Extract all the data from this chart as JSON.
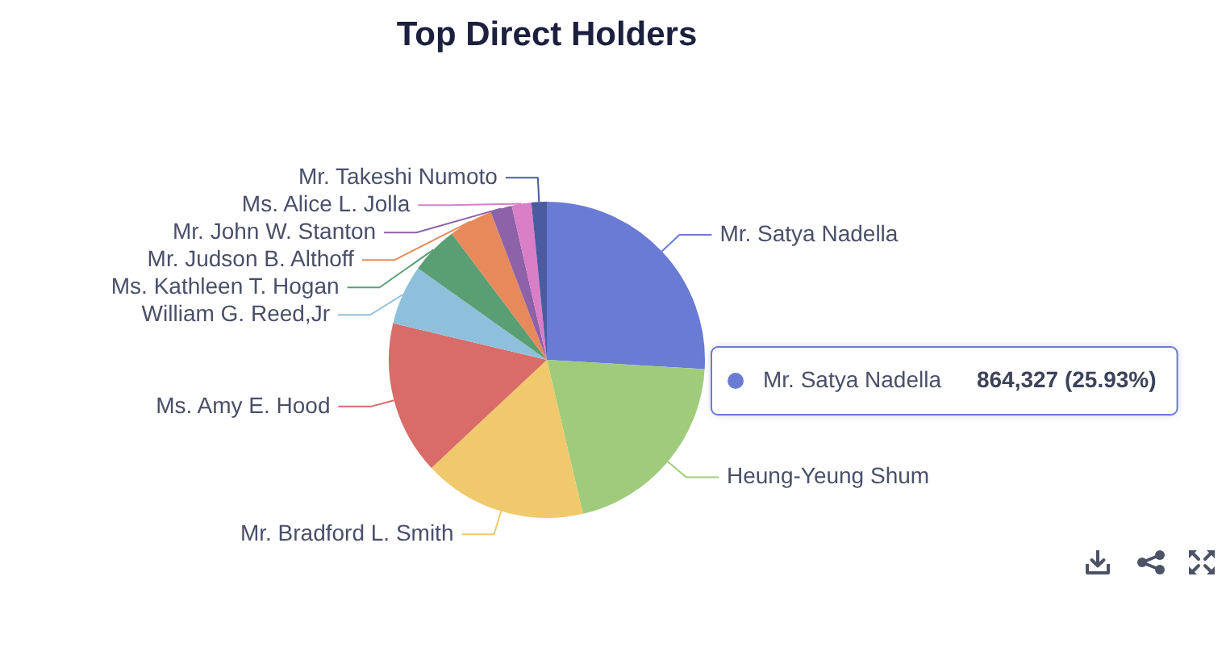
{
  "chart_data": {
    "type": "pie",
    "title": "Top Direct Holders",
    "categories": [
      "Mr. Satya Nadella",
      "Heung-Yeung Shum",
      "Mr. Bradford L. Smith",
      "Ms. Amy E. Hood",
      "William G. Reed,Jr",
      "Ms. Kathleen T. Hogan",
      "Mr. Judson B. Althoff",
      "Mr. John W. Stanton",
      "Ms. Alice L. Jolla",
      "Mr. Takeshi Numoto"
    ],
    "values": [
      25.93,
      20.4,
      16.7,
      15.7,
      6.1,
      4.9,
      4.5,
      2.2,
      2.0,
      1.57
    ],
    "colors": [
      "#6a7bd4",
      "#9fcb7b",
      "#f0c96c",
      "#d96b68",
      "#8ec0dc",
      "#5a9e73",
      "#e7895b",
      "#8d62a8",
      "#d97ec7",
      "#4b5ba0"
    ],
    "value_labels": [
      "864,327 (25.93%)",
      null,
      null,
      null,
      null,
      null,
      null,
      null,
      null,
      null
    ]
  }
}
